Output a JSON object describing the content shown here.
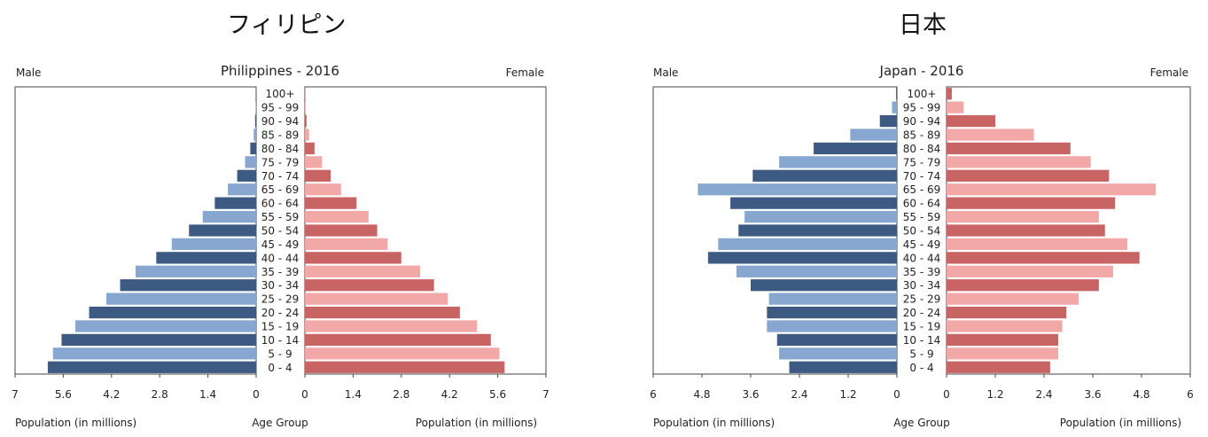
{
  "panels": {
    "ph_heading": "フィリピン",
    "jp_heading": "日本"
  },
  "colors": {
    "male_dark": "#3d5b82",
    "male_light": "#87a6d0",
    "female_dark": "#c96464",
    "female_light": "#f3a8a8"
  },
  "chart_data": [
    {
      "type": "bar",
      "title": "Philippines - 2016",
      "male_label": "Male",
      "female_label": "Female",
      "xlabel_left": "Population (in millions)",
      "xlabel_right": "Population (in millions)",
      "center_label": "Age Group",
      "xlim": [
        0,
        7
      ],
      "ticks": [
        "0",
        "1.4",
        "2.8",
        "4.2",
        "5.6",
        "7"
      ],
      "categories": [
        "0 - 4",
        "5 - 9",
        "10 - 14",
        "15 - 19",
        "20 - 24",
        "25 - 29",
        "30 - 34",
        "35 - 39",
        "40 - 44",
        "45 - 49",
        "50 - 54",
        "55 - 59",
        "60 - 64",
        "65 - 69",
        "70 - 74",
        "75 - 79",
        "80 - 84",
        "85 - 89",
        "90 - 94",
        "95 - 99",
        "100+"
      ],
      "series": [
        {
          "name": "Male",
          "values": [
            6.05,
            5.9,
            5.65,
            5.25,
            4.85,
            4.35,
            3.95,
            3.5,
            2.9,
            2.45,
            1.95,
            1.55,
            1.2,
            0.82,
            0.55,
            0.32,
            0.17,
            0.07,
            0.03,
            0.01,
            0.005
          ]
        },
        {
          "name": "Female",
          "values": [
            5.8,
            5.65,
            5.4,
            5.0,
            4.5,
            4.15,
            3.75,
            3.35,
            2.8,
            2.4,
            2.1,
            1.85,
            1.5,
            1.05,
            0.75,
            0.5,
            0.28,
            0.12,
            0.05,
            0.02,
            0.01
          ]
        }
      ]
    },
    {
      "type": "bar",
      "title": "Japan - 2016",
      "male_label": "Male",
      "female_label": "Female",
      "xlabel_left": "Population (in millions)",
      "xlabel_right": "Population (in millions)",
      "center_label": "Age Group",
      "xlim": [
        0,
        6
      ],
      "ticks": [
        "0",
        "1.2",
        "2.4",
        "3.6",
        "4.8",
        "6"
      ],
      "categories": [
        "0 - 4",
        "5 - 9",
        "10 - 14",
        "15 - 19",
        "20 - 24",
        "25 - 29",
        "30 - 34",
        "35 - 39",
        "40 - 44",
        "45 - 49",
        "50 - 54",
        "55 - 59",
        "60 - 64",
        "65 - 69",
        "70 - 74",
        "75 - 79",
        "80 - 84",
        "85 - 89",
        "90 - 94",
        "95 - 99",
        "100+"
      ],
      "series": [
        {
          "name": "Male",
          "values": [
            2.65,
            2.9,
            2.95,
            3.2,
            3.2,
            3.15,
            3.6,
            3.95,
            4.65,
            4.4,
            3.9,
            3.75,
            4.1,
            4.9,
            3.55,
            2.9,
            2.05,
            1.15,
            0.42,
            0.12,
            0.02
          ]
        },
        {
          "name": "Female",
          "values": [
            2.55,
            2.75,
            2.75,
            2.85,
            2.95,
            3.25,
            3.75,
            4.1,
            4.75,
            4.45,
            3.9,
            3.75,
            4.15,
            5.15,
            4.0,
            3.55,
            3.05,
            2.15,
            1.2,
            0.42,
            0.13
          ]
        }
      ]
    }
  ]
}
